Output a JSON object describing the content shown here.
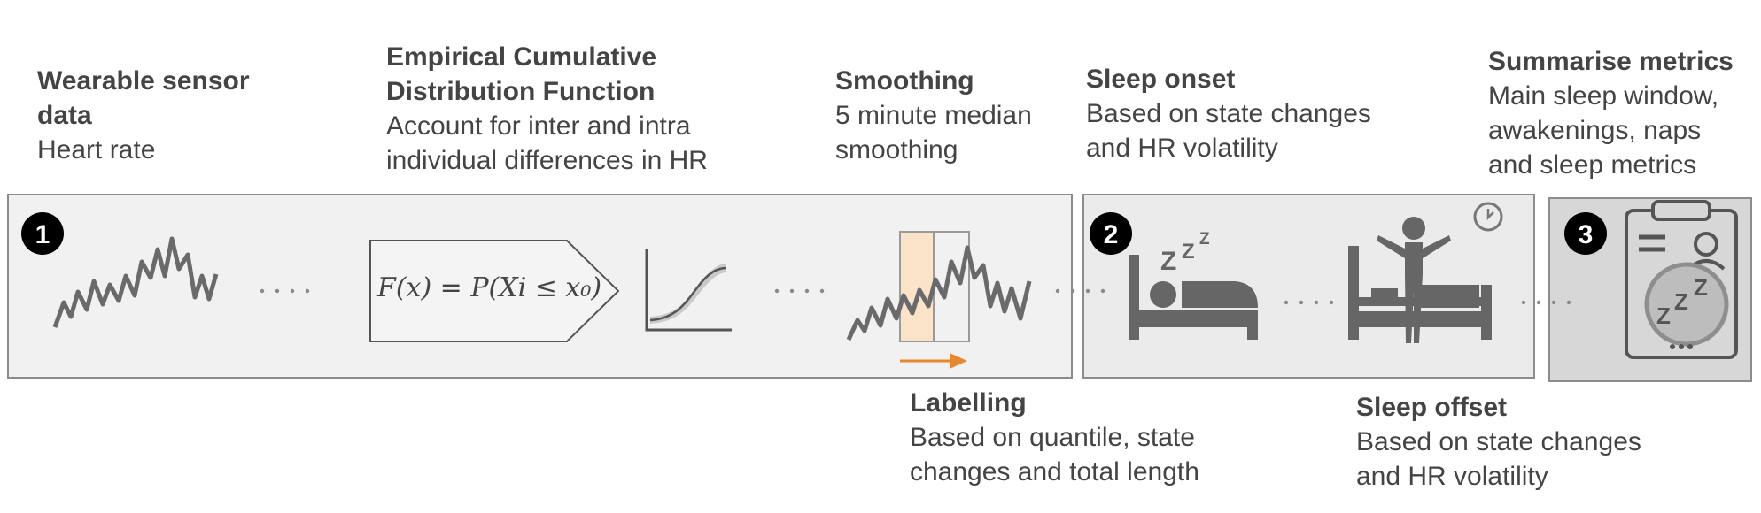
{
  "colors": {
    "panel_light": "#f1f1f1",
    "panel_mid": "#ebebeb",
    "panel_dark": "#d7d7d7",
    "ink": "#444444",
    "icon_gray": "#666666",
    "highlight": "#fbe3c9",
    "accent_orange": "#e8882e"
  },
  "labels": {
    "sensor": {
      "title": "Wearable sensor data",
      "title_line1": "Wearable sensor",
      "title_line2": "data",
      "desc": "Heart rate"
    },
    "ecdf": {
      "title_line1": "Empirical Cumulative",
      "title_line2": "Distribution Function",
      "desc_line1": "Account for inter and intra",
      "desc_line2": "individual differences in HR"
    },
    "smoothing": {
      "title": "Smoothing",
      "desc_line1": "5 minute median",
      "desc_line2": "smoothing"
    },
    "sleep_onset": {
      "title": "Sleep onset",
      "desc_line1": "Based on state changes",
      "desc_line2": "and HR volatility"
    },
    "summarise": {
      "title": "Summarise metrics",
      "desc_line1": "Main sleep window,",
      "desc_line2": "awakenings, naps",
      "desc_line3": "and sleep metrics"
    },
    "labelling": {
      "title": "Labelling",
      "desc_line1": "Based on quantile, state",
      "desc_line2": "changes and total length"
    },
    "sleep_offset": {
      "title": "Sleep offset",
      "desc_line1": "Based on state changes",
      "desc_line2": "and HR volatility"
    }
  },
  "formula": "F(x) = P(Xi ≤ x₀)",
  "steps": [
    "1",
    "2",
    "3"
  ],
  "icons": {
    "heart_rate_trace": "heart-rate-line-icon",
    "ecdf_curve": "cdf-curve-icon",
    "smoothing_window": "sliding-window-icon",
    "sleeping_person": "sleeping-bed-icon",
    "waking_person": "waking-person-bed-icon",
    "clock": "clock-icon",
    "clipboard": "clipboard-sleep-icon"
  }
}
